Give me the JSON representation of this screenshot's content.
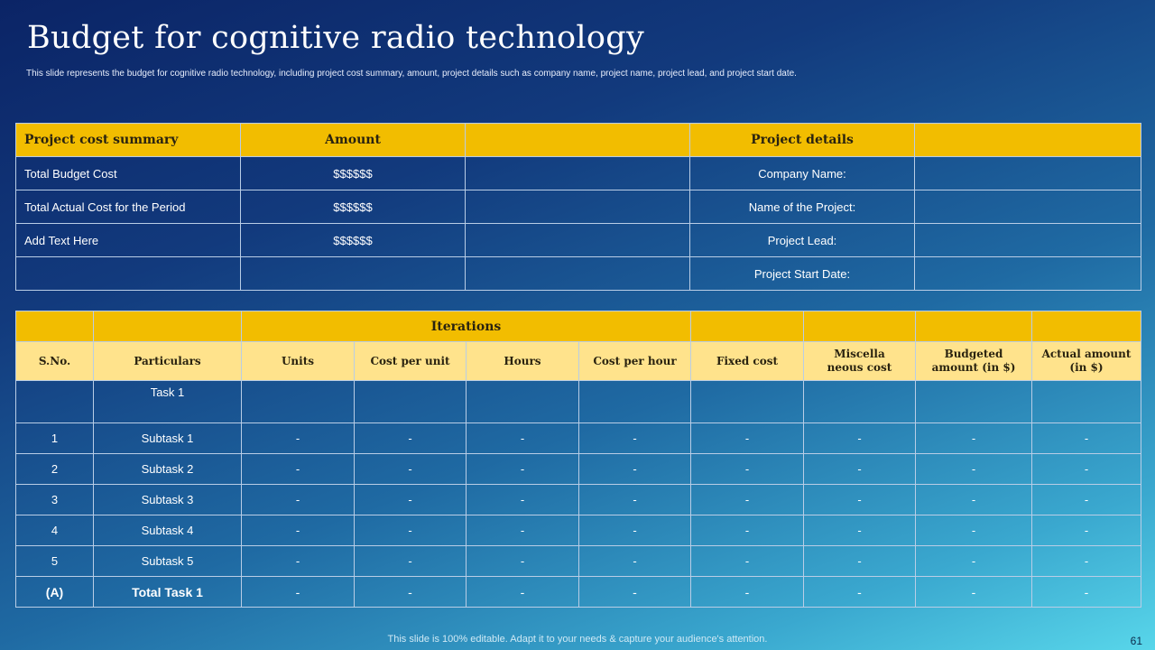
{
  "title": "Budget for cognitive radio technology",
  "subtitle": "This slide represents the budget for cognitive radio technology, including project cost summary, amount, project details such as company name, project name, project lead, and project start date.",
  "summary_table": {
    "headers": [
      "Project cost summary",
      "Amount",
      "",
      "Project details",
      ""
    ],
    "rows": [
      [
        "Total Budget Cost",
        "$$$$$$",
        "",
        "Company Name:",
        ""
      ],
      [
        "Total Actual Cost for the Period",
        "$$$$$$",
        "",
        "Name of the Project:",
        ""
      ],
      [
        "Add Text Here",
        "$$$$$$",
        "",
        "Project Lead:",
        ""
      ],
      [
        "",
        "",
        "",
        "Project Start Date:",
        ""
      ]
    ]
  },
  "iterations_table": {
    "group_header": "Iterations",
    "columns": [
      "S.No.",
      "Particulars",
      "Units",
      "Cost per unit",
      "Hours",
      "Cost per hour",
      "Fixed cost",
      "Miscella neous cost",
      "Budgeted amount (in $)",
      "Actual amount (in $)"
    ],
    "task_label": "Task 1",
    "rows": [
      [
        "1",
        "Subtask 1",
        "-",
        "-",
        "-",
        "-",
        "-",
        "-",
        "-",
        "-"
      ],
      [
        "2",
        "Subtask 2",
        "-",
        "-",
        "-",
        "-",
        "-",
        "-",
        "-",
        "-"
      ],
      [
        "3",
        "Subtask 3",
        "-",
        "-",
        "-",
        "-",
        "-",
        "-",
        "-",
        "-"
      ],
      [
        "4",
        "Subtask 4",
        "-",
        "-",
        "-",
        "-",
        "-",
        "-",
        "-",
        "-"
      ],
      [
        "5",
        "Subtask 5",
        "-",
        "-",
        "-",
        "-",
        "-",
        "-",
        "-",
        "-"
      ]
    ],
    "total_row": [
      "(A)",
      "Total Task 1",
      "-",
      "-",
      "-",
      "-",
      "-",
      "-",
      "-",
      "-"
    ]
  },
  "footer": "This slide is 100% editable. Adapt it to your needs & capture your audience's attention.",
  "page_number": "61",
  "colors": {
    "header_yellow": "#f2bd00",
    "subheader_yellow": "#ffe38c",
    "bg_dark": "#0b2466",
    "bg_light": "#58d6ea"
  }
}
